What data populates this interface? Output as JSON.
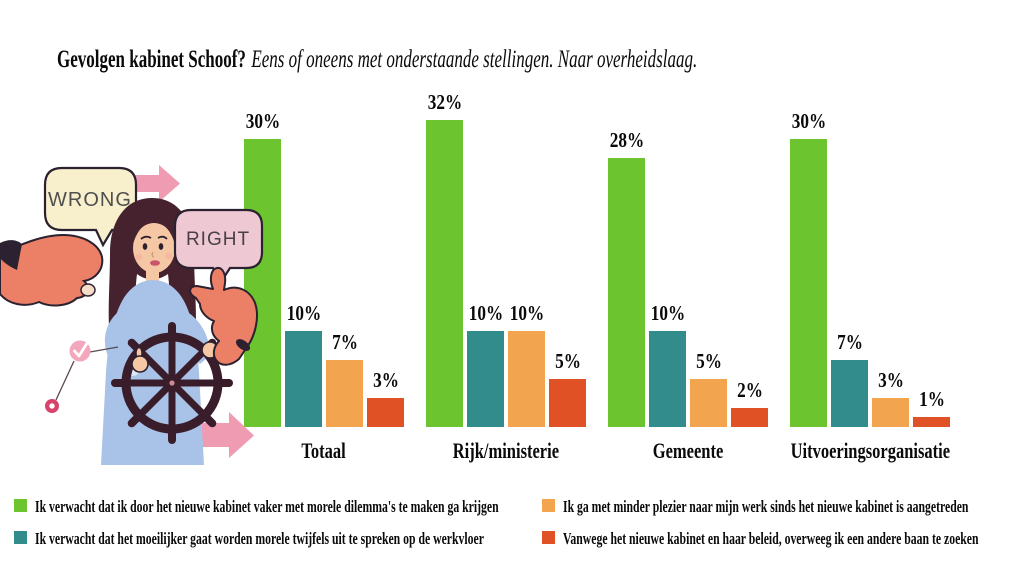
{
  "title": {
    "bold": "Gevolgen kabinet Schoof?",
    "italic": "Eens of oneens met onderstaande stellingen. Naar overheidslaag."
  },
  "chart_data": {
    "type": "bar",
    "categories": [
      "Totaal",
      "Rijk/ministerie",
      "Gemeente",
      "Uitvoeringsorganisatie"
    ],
    "series": [
      {
        "name": "Ik verwacht dat ik door het nieuwe kabinet vaker met morele dilemma's te maken ga krijgen",
        "color": "#6cc42e",
        "values": [
          30,
          32,
          28,
          30
        ]
      },
      {
        "name": "Ik verwacht dat het moeilijker gaat worden morele twijfels uit te spreken op de werkvloer",
        "color": "#318c8b",
        "values": [
          10,
          10,
          10,
          7
        ]
      },
      {
        "name": "Ik ga met minder plezier naar mijn werk sinds het nieuwe kabinet is aangetreden",
        "color": "#f2a54e",
        "values": [
          7,
          10,
          5,
          3
        ]
      },
      {
        "name": "Vanwege het nieuwe kabinet en haar beleid, overweeg ik een andere baan te zoeken",
        "color": "#e05126",
        "values": [
          3,
          5,
          2,
          1
        ]
      }
    ],
    "value_suffix": "%",
    "value_labels": true,
    "ylim": [
      0,
      35
    ],
    "grid": false,
    "axis_lines": false,
    "legend_position": "bottom-two-columns"
  },
  "illustration": {
    "wrong_label": "WRONG",
    "right_label": "RIGHT"
  }
}
